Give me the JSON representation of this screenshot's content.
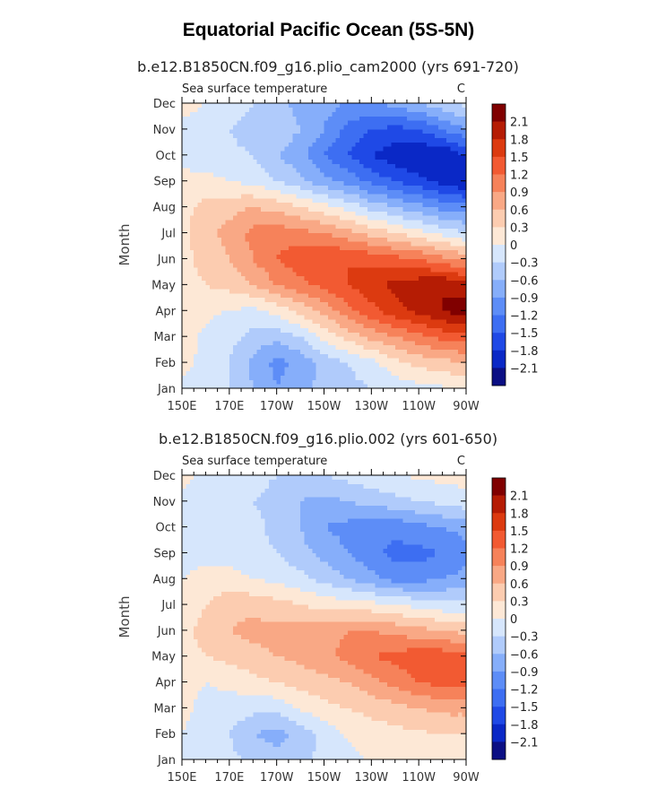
{
  "title": "Equatorial Pacific Ocean (5S-5N)",
  "chart_data": [
    {
      "type": "heatmap",
      "title": "b.e12.B1850CN.f09_g16.plio_cam2000 (yrs 691-720)",
      "left_label": "Sea surface temperature",
      "right_label": "C",
      "xlabel": "",
      "ylabel": "Month",
      "x_ticks": [
        "150E",
        "170E",
        "170W",
        "150W",
        "130W",
        "110W",
        "90W"
      ],
      "y_ticks": [
        "Jan",
        "Feb",
        "Mar",
        "Apr",
        "May",
        "Jun",
        "Jul",
        "Aug",
        "Sep",
        "Oct",
        "Nov",
        "Dec"
      ],
      "xlim": [
        150,
        270
      ],
      "ylim": [
        1,
        12
      ],
      "x_grid": [
        150,
        160,
        170,
        180,
        190,
        200,
        210,
        220,
        230,
        240,
        250,
        260,
        270
      ],
      "y_grid": [
        1,
        2,
        3,
        4,
        5,
        6,
        7,
        8,
        9,
        10,
        11,
        12
      ],
      "z": [
        [
          -0.05,
          -0.1,
          -0.3,
          -0.6,
          -0.9,
          -0.7,
          -0.5,
          -0.4,
          -0.3,
          -0.2,
          -0.1,
          -0.05,
          0.0
        ],
        [
          0.05,
          -0.05,
          -0.3,
          -0.7,
          -1.0,
          -0.8,
          -0.5,
          -0.3,
          -0.1,
          0.2,
          0.4,
          0.5,
          0.6
        ],
        [
          0.1,
          -0.05,
          -0.2,
          -0.4,
          -0.5,
          -0.3,
          0.1,
          0.4,
          0.7,
          0.9,
          1.1,
          1.3,
          1.4
        ],
        [
          0.1,
          0.05,
          0.0,
          -0.1,
          0.1,
          0.4,
          0.7,
          1.1,
          1.4,
          1.7,
          1.9,
          2.1,
          2.3
        ],
        [
          0.2,
          0.3,
          0.4,
          0.6,
          0.9,
          1.1,
          1.3,
          1.5,
          1.7,
          1.9,
          2.0,
          2.1,
          1.9
        ],
        [
          0.2,
          0.4,
          0.6,
          0.9,
          1.2,
          1.4,
          1.5,
          1.5,
          1.4,
          1.3,
          1.2,
          1.0,
          0.8
        ],
        [
          0.2,
          0.5,
          0.7,
          1.0,
          1.1,
          1.0,
          0.9,
          0.7,
          0.5,
          0.3,
          0.1,
          -0.1,
          -0.3
        ],
        [
          0.2,
          0.4,
          0.5,
          0.6,
          0.5,
          0.3,
          0.1,
          -0.1,
          -0.4,
          -0.6,
          -0.8,
          -1.0,
          -1.1
        ],
        [
          0.1,
          0.1,
          0.0,
          -0.1,
          -0.3,
          -0.5,
          -0.8,
          -1.0,
          -1.3,
          -1.5,
          -1.7,
          -1.9,
          -2.1
        ],
        [
          -0.1,
          -0.2,
          -0.2,
          -0.3,
          -0.6,
          -0.8,
          -1.2,
          -1.5,
          -1.8,
          -2.0,
          -2.1,
          -2.1,
          -1.8
        ],
        [
          -0.1,
          -0.1,
          -0.3,
          -0.5,
          -0.4,
          -0.6,
          -0.9,
          -1.3,
          -1.5,
          -1.6,
          -1.5,
          -1.2,
          -0.9
        ],
        [
          0.1,
          0.0,
          -0.1,
          -0.3,
          -0.5,
          -0.7,
          -0.8,
          -0.9,
          -0.9,
          -0.8,
          -0.6,
          -0.4,
          -0.2
        ]
      ]
    },
    {
      "type": "heatmap",
      "title": "b.e12.B1850CN.f09_g16.plio.002 (yrs 601-650)",
      "left_label": "Sea surface temperature",
      "right_label": "C",
      "xlabel": "",
      "ylabel": "Month",
      "x_ticks": [
        "150E",
        "170E",
        "170W",
        "150W",
        "130W",
        "110W",
        "90W"
      ],
      "y_ticks": [
        "Jan",
        "Feb",
        "Mar",
        "Apr",
        "May",
        "Jun",
        "Jul",
        "Aug",
        "Sep",
        "Oct",
        "Nov",
        "Dec"
      ],
      "xlim": [
        150,
        270
      ],
      "ylim": [
        1,
        12
      ],
      "x_grid": [
        150,
        160,
        170,
        180,
        190,
        200,
        210,
        220,
        230,
        240,
        250,
        260,
        270
      ],
      "y_grid": [
        1,
        2,
        3,
        4,
        5,
        6,
        7,
        8,
        9,
        10,
        11,
        12
      ],
      "z": [
        [
          -0.05,
          -0.1,
          -0.2,
          -0.4,
          -0.5,
          -0.4,
          -0.2,
          -0.1,
          0.05,
          0.1,
          0.1,
          0.1,
          0.1
        ],
        [
          0.0,
          -0.1,
          -0.3,
          -0.6,
          -0.7,
          -0.5,
          -0.2,
          0.05,
          0.15,
          0.2,
          0.25,
          0.3,
          0.3
        ],
        [
          0.05,
          -0.05,
          -0.1,
          -0.2,
          -0.2,
          0.05,
          0.2,
          0.3,
          0.4,
          0.5,
          0.6,
          0.7,
          0.7
        ],
        [
          0.05,
          0.0,
          0.05,
          0.2,
          0.3,
          0.4,
          0.5,
          0.6,
          0.8,
          1.0,
          1.2,
          1.3,
          1.3
        ],
        [
          0.2,
          0.3,
          0.4,
          0.5,
          0.6,
          0.7,
          0.8,
          1.0,
          1.2,
          1.3,
          1.4,
          1.4,
          1.3
        ],
        [
          0.2,
          0.4,
          0.6,
          0.7,
          0.7,
          0.7,
          0.8,
          0.9,
          0.9,
          0.8,
          0.7,
          0.6,
          0.5
        ],
        [
          0.1,
          0.3,
          0.5,
          0.5,
          0.4,
          0.3,
          0.2,
          0.15,
          0.1,
          0.0,
          -0.1,
          -0.2,
          -0.2
        ],
        [
          0.0,
          0.1,
          0.1,
          0.0,
          -0.1,
          -0.2,
          -0.4,
          -0.6,
          -0.8,
          -1.0,
          -1.0,
          -0.9,
          -0.8
        ],
        [
          -0.1,
          -0.1,
          -0.1,
          -0.2,
          -0.3,
          -0.5,
          -0.7,
          -0.9,
          -1.1,
          -1.3,
          -1.3,
          -1.2,
          -1.0
        ],
        [
          -0.1,
          -0.1,
          -0.1,
          -0.2,
          -0.4,
          -0.6,
          -0.9,
          -1.0,
          -1.1,
          -1.1,
          -1.0,
          -0.9,
          -0.8
        ],
        [
          -0.05,
          -0.1,
          -0.2,
          -0.3,
          -0.4,
          -0.6,
          -0.7,
          -0.6,
          -0.5,
          -0.4,
          -0.3,
          -0.2,
          -0.1
        ],
        [
          0.05,
          -0.05,
          -0.1,
          -0.2,
          -0.3,
          -0.4,
          -0.3,
          -0.2,
          -0.1,
          0.0,
          0.05,
          0.1,
          0.1
        ]
      ]
    }
  ],
  "colorbar": {
    "labels": [
      "2.1",
      "1.8",
      "1.5",
      "1.2",
      "0.9",
      "0.6",
      "0.3",
      "0",
      "−0.3",
      "−0.6",
      "−0.9",
      "−1.2",
      "−1.5",
      "−1.8",
      "−2.1"
    ],
    "levels": [
      -2.1,
      -1.8,
      -1.5,
      -1.2,
      -0.9,
      -0.6,
      -0.3,
      0,
      0.3,
      0.6,
      0.9,
      1.2,
      1.5,
      1.8,
      2.1
    ],
    "colors_low_to_high": [
      "#0b0f84",
      "#0a28c6",
      "#1f49e6",
      "#3d6ef2",
      "#5d8df7",
      "#86aefa",
      "#b0cbfb",
      "#d6e6fc",
      "#fde8d6",
      "#fcccb0",
      "#f9a885",
      "#f6825a",
      "#f25a32",
      "#dc3a10",
      "#b51c04",
      "#800000"
    ]
  }
}
